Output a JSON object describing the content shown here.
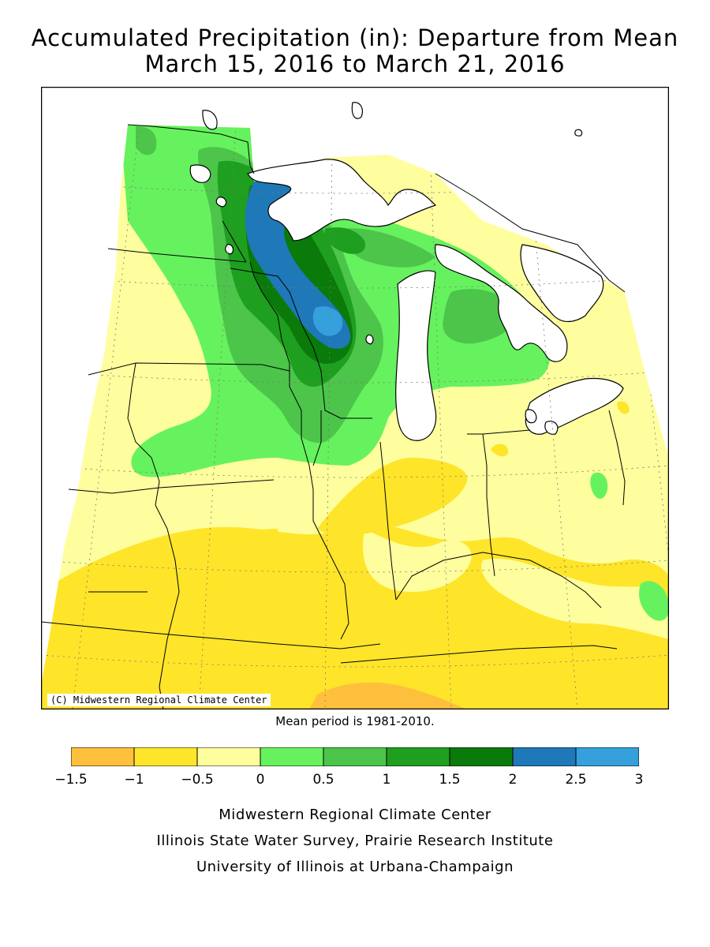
{
  "title_line1": "Accumulated Precipitation (in): Departure from Mean",
  "title_line2": "March 15, 2016 to March 21, 2016",
  "copyright": "(C) Midwestern Regional Climate Center",
  "mean_note": "Mean period is 1981-2010.",
  "legend": {
    "ticks": [
      "−1.5",
      "−1",
      "−0.5",
      "0",
      "0.5",
      "1",
      "1.5",
      "2",
      "2.5",
      "3"
    ],
    "bins": [
      {
        "from": -1.5,
        "to": -1.0,
        "color": "#fec03c"
      },
      {
        "from": -1.0,
        "to": -0.5,
        "color": "#fee52a"
      },
      {
        "from": -0.5,
        "to": 0.0,
        "color": "#fefe9e"
      },
      {
        "from": 0.0,
        "to": 0.5,
        "color": "#66f25e"
      },
      {
        "from": 0.5,
        "to": 1.0,
        "color": "#4cc54a"
      },
      {
        "from": 1.0,
        "to": 1.5,
        "color": "#1f9f1f"
      },
      {
        "from": 1.5,
        "to": 2.0,
        "color": "#0a7a0a"
      },
      {
        "from": 2.0,
        "to": 2.5,
        "color": "#1f78b8"
      },
      {
        "from": 2.5,
        "to": 3.0,
        "color": "#35a0dc"
      }
    ]
  },
  "credits": [
    "Midwestern Regional Climate Center",
    "Illinois State Water Survey, Prairie Research Institute",
    "University of Illinois at Urbana-Champaign"
  ]
}
